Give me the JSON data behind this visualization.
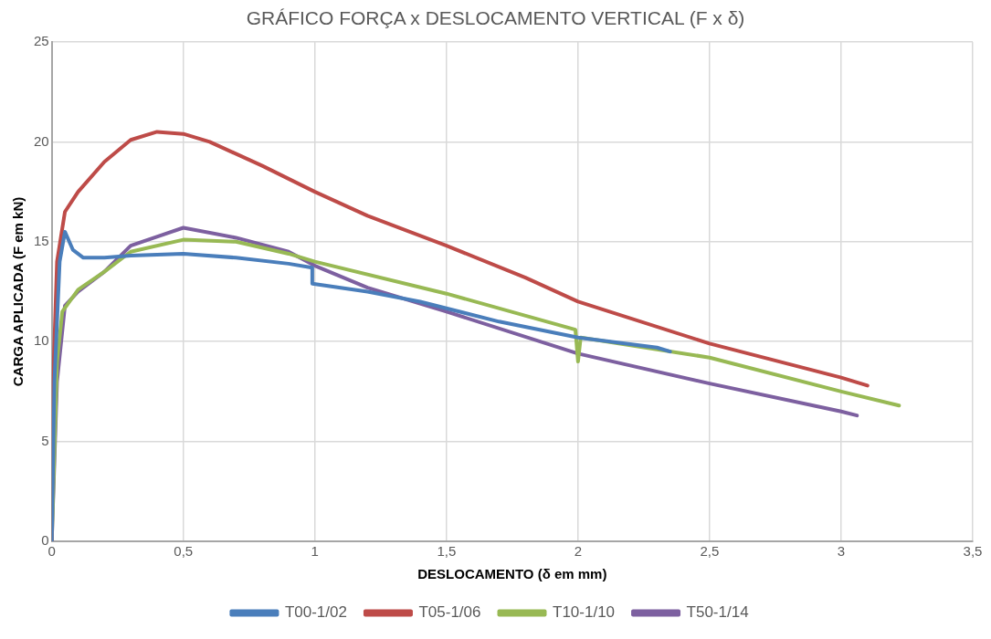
{
  "chart_data": {
    "type": "line",
    "title": "GRÁFICO FORÇA x DESLOCAMENTO VERTICAL (F x δ)",
    "xlabel": "DESLOCAMENTO (δ em mm)",
    "ylabel": "CARGA APLICADA (F em kN)",
    "xlim": [
      0,
      3.5
    ],
    "xticks": [
      0,
      {
        "value": 0.5,
        "label": "0,5"
      },
      1,
      {
        "value": 1.5,
        "label": "1,5"
      },
      2,
      {
        "value": 2.5,
        "label": "2,5"
      },
      3,
      {
        "value": 3.5,
        "label": "3,5"
      }
    ],
    "ylim": [
      0,
      25
    ],
    "yticks": [
      0,
      5,
      10,
      15,
      20,
      25
    ],
    "grid": true,
    "legend": "bottom",
    "marker": "none",
    "line_style": "solid",
    "series": [
      {
        "name": "T00-1/02",
        "color": "#4a7ebb",
        "x": [
          0,
          0.01,
          0.03,
          0.05,
          0.08,
          0.12,
          0.2,
          0.3,
          0.5,
          0.7,
          0.9,
          0.99,
          0.99,
          1.2,
          1.4,
          1.7,
          2.0,
          2.3,
          2.35
        ],
        "values": [
          0,
          8,
          14,
          15.5,
          14.6,
          14.2,
          14.2,
          14.3,
          14.4,
          14.2,
          13.9,
          13.7,
          12.9,
          12.5,
          12.0,
          11.0,
          10.2,
          9.7,
          9.5
        ]
      },
      {
        "name": "T05-1/06",
        "color": "#be4b48",
        "x": [
          0,
          0.005,
          0.02,
          0.05,
          0.1,
          0.2,
          0.3,
          0.4,
          0.5,
          0.6,
          0.8,
          1.0,
          1.2,
          1.5,
          1.8,
          2.0,
          2.5,
          3.0,
          3.1
        ],
        "values": [
          0,
          8,
          14,
          16.5,
          17.5,
          19,
          20.1,
          20.5,
          20.4,
          20,
          18.8,
          17.5,
          16.3,
          14.8,
          13.2,
          12,
          9.9,
          8.2,
          7.8
        ]
      },
      {
        "name": "T10-1/10",
        "color": "#98b954",
        "x": [
          0,
          0.02,
          0.04,
          0.1,
          0.2,
          0.3,
          0.5,
          0.7,
          0.9,
          1.0,
          1.5,
          1.99,
          2.0,
          2.01,
          2.5,
          3.0,
          3.22
        ],
        "values": [
          0,
          9,
          11.5,
          12.6,
          13.5,
          14.5,
          15.1,
          15.0,
          14.4,
          14.0,
          12.4,
          10.6,
          9.0,
          10.2,
          9.2,
          7.5,
          6.8
        ]
      },
      {
        "name": "T50-1/14",
        "color": "#7d60a0",
        "x": [
          0,
          0.02,
          0.05,
          0.1,
          0.2,
          0.3,
          0.5,
          0.7,
          0.9,
          1.0,
          1.2,
          1.5,
          2.0,
          2.5,
          3.0,
          3.06
        ],
        "values": [
          0,
          8,
          11.8,
          12.5,
          13.5,
          14.8,
          15.7,
          15.2,
          14.5,
          13.8,
          12.7,
          11.5,
          9.4,
          7.9,
          6.5,
          6.3
        ]
      }
    ]
  }
}
